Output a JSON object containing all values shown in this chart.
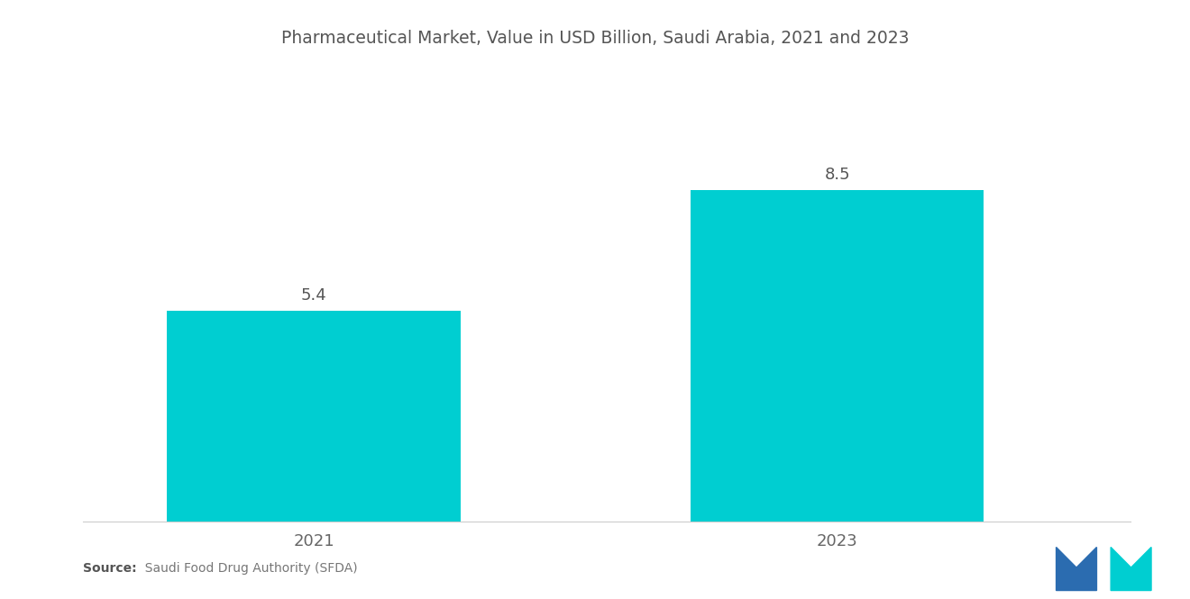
{
  "title": "Pharmaceutical Market, Value in USD Billion, Saudi Arabia, 2021 and 2023",
  "categories": [
    "2021",
    "2023"
  ],
  "values": [
    5.4,
    8.5
  ],
  "bar_color": "#00CED1",
  "background_color": "#ffffff",
  "title_fontsize": 13.5,
  "label_fontsize": 13,
  "value_fontsize": 13,
  "source_bold": "Source:",
  "source_rest": "  Saudi Food Drug Authority (SFDA)",
  "bar_width": 0.28,
  "ylim": [
    0,
    10
  ],
  "x_positions": [
    0.22,
    0.72
  ],
  "xlim": [
    0,
    1.0
  ],
  "logo_blue": "#2B6CB0",
  "logo_teal": "#00CED1"
}
